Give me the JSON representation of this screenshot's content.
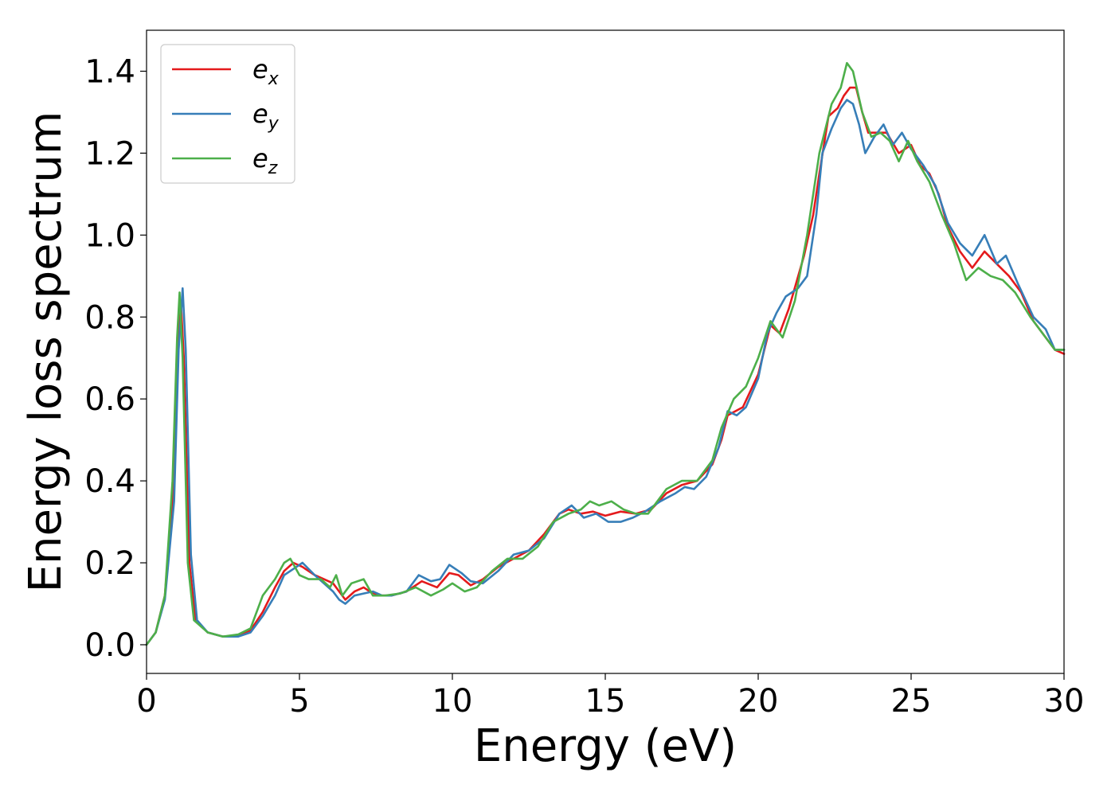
{
  "chart_data": {
    "type": "line",
    "title": "",
    "xlabel": "Energy (eV)",
    "ylabel": "Energy loss spectrum",
    "xlim": [
      0,
      30
    ],
    "ylim": [
      -0.07,
      1.5
    ],
    "xticks": [
      0,
      5,
      10,
      15,
      20,
      25,
      30
    ],
    "xtick_labels": [
      "0",
      "5",
      "10",
      "15",
      "20",
      "25",
      "30"
    ],
    "yticks": [
      0.0,
      0.2,
      0.4,
      0.6,
      0.8,
      1.0,
      1.2,
      1.4
    ],
    "ytick_labels": [
      "0.0",
      "0.2",
      "0.4",
      "0.6",
      "0.8",
      "1.0",
      "1.2",
      "1.4"
    ],
    "grid": false,
    "legend_position": "top-left",
    "series": [
      {
        "name": "e_x",
        "legend_base": "e",
        "legend_sub": "x",
        "color": "#e41a1c",
        "points": [
          [
            0,
            0
          ],
          [
            0.3,
            0.03
          ],
          [
            0.6,
            0.12
          ],
          [
            0.85,
            0.35
          ],
          [
            1.0,
            0.7
          ],
          [
            1.12,
            0.84
          ],
          [
            1.22,
            0.7
          ],
          [
            1.4,
            0.2
          ],
          [
            1.6,
            0.06
          ],
          [
            2.0,
            0.03
          ],
          [
            2.5,
            0.02
          ],
          [
            3.0,
            0.022
          ],
          [
            3.4,
            0.035
          ],
          [
            3.8,
            0.08
          ],
          [
            4.2,
            0.14
          ],
          [
            4.5,
            0.18
          ],
          [
            4.8,
            0.2
          ],
          [
            5.1,
            0.19
          ],
          [
            5.5,
            0.17
          ],
          [
            5.8,
            0.16
          ],
          [
            6.1,
            0.15
          ],
          [
            6.3,
            0.13
          ],
          [
            6.5,
            0.11
          ],
          [
            6.8,
            0.13
          ],
          [
            7.1,
            0.14
          ],
          [
            7.3,
            0.13
          ],
          [
            7.6,
            0.12
          ],
          [
            8.0,
            0.12
          ],
          [
            8.5,
            0.13
          ],
          [
            9.0,
            0.155
          ],
          [
            9.5,
            0.14
          ],
          [
            9.9,
            0.175
          ],
          [
            10.2,
            0.17
          ],
          [
            10.6,
            0.145
          ],
          [
            11.0,
            0.16
          ],
          [
            11.5,
            0.19
          ],
          [
            12.0,
            0.21
          ],
          [
            12.5,
            0.23
          ],
          [
            13.0,
            0.27
          ],
          [
            13.5,
            0.32
          ],
          [
            13.8,
            0.33
          ],
          [
            14.2,
            0.32
          ],
          [
            14.6,
            0.325
          ],
          [
            15.0,
            0.315
          ],
          [
            15.5,
            0.325
          ],
          [
            16.0,
            0.32
          ],
          [
            16.5,
            0.33
          ],
          [
            17.0,
            0.37
          ],
          [
            17.5,
            0.39
          ],
          [
            18.0,
            0.4
          ],
          [
            18.5,
            0.44
          ],
          [
            18.8,
            0.5
          ],
          [
            19.0,
            0.56
          ],
          [
            19.5,
            0.58
          ],
          [
            20.0,
            0.66
          ],
          [
            20.4,
            0.78
          ],
          [
            20.7,
            0.76
          ],
          [
            21.0,
            0.82
          ],
          [
            21.5,
            0.95
          ],
          [
            21.8,
            1.05
          ],
          [
            22.0,
            1.15
          ],
          [
            22.3,
            1.29
          ],
          [
            22.6,
            1.31
          ],
          [
            22.8,
            1.34
          ],
          [
            23.0,
            1.36
          ],
          [
            23.2,
            1.36
          ],
          [
            23.4,
            1.3
          ],
          [
            23.6,
            1.25
          ],
          [
            23.9,
            1.25
          ],
          [
            24.2,
            1.25
          ],
          [
            24.6,
            1.2
          ],
          [
            25.0,
            1.22
          ],
          [
            25.3,
            1.17
          ],
          [
            25.6,
            1.15
          ],
          [
            25.9,
            1.1
          ],
          [
            26.2,
            1.02
          ],
          [
            26.6,
            0.96
          ],
          [
            27.0,
            0.92
          ],
          [
            27.4,
            0.96
          ],
          [
            27.8,
            0.93
          ],
          [
            28.2,
            0.9
          ],
          [
            28.6,
            0.86
          ],
          [
            29.0,
            0.79
          ],
          [
            29.4,
            0.75
          ],
          [
            29.7,
            0.72
          ],
          [
            30.0,
            0.71
          ]
        ]
      },
      {
        "name": "e_y",
        "legend_base": "e",
        "legend_sub": "y",
        "color": "#377eb8",
        "points": [
          [
            0,
            0
          ],
          [
            0.3,
            0.03
          ],
          [
            0.6,
            0.11
          ],
          [
            0.9,
            0.35
          ],
          [
            1.05,
            0.72
          ],
          [
            1.18,
            0.87
          ],
          [
            1.28,
            0.72
          ],
          [
            1.45,
            0.22
          ],
          [
            1.65,
            0.06
          ],
          [
            2.0,
            0.03
          ],
          [
            2.5,
            0.02
          ],
          [
            3.0,
            0.02
          ],
          [
            3.4,
            0.03
          ],
          [
            3.8,
            0.07
          ],
          [
            4.2,
            0.12
          ],
          [
            4.5,
            0.17
          ],
          [
            4.9,
            0.19
          ],
          [
            5.1,
            0.2
          ],
          [
            5.5,
            0.17
          ],
          [
            5.8,
            0.15
          ],
          [
            6.1,
            0.13
          ],
          [
            6.3,
            0.11
          ],
          [
            6.5,
            0.1
          ],
          [
            6.8,
            0.12
          ],
          [
            7.1,
            0.125
          ],
          [
            7.4,
            0.13
          ],
          [
            7.7,
            0.12
          ],
          [
            8.0,
            0.12
          ],
          [
            8.5,
            0.13
          ],
          [
            8.9,
            0.17
          ],
          [
            9.3,
            0.155
          ],
          [
            9.6,
            0.16
          ],
          [
            9.9,
            0.195
          ],
          [
            10.3,
            0.175
          ],
          [
            10.6,
            0.155
          ],
          [
            11.0,
            0.15
          ],
          [
            11.5,
            0.18
          ],
          [
            12.0,
            0.22
          ],
          [
            12.5,
            0.23
          ],
          [
            13.0,
            0.26
          ],
          [
            13.5,
            0.32
          ],
          [
            13.9,
            0.34
          ],
          [
            14.3,
            0.31
          ],
          [
            14.7,
            0.32
          ],
          [
            15.1,
            0.3
          ],
          [
            15.5,
            0.3
          ],
          [
            15.9,
            0.31
          ],
          [
            16.3,
            0.325
          ],
          [
            16.8,
            0.35
          ],
          [
            17.3,
            0.37
          ],
          [
            17.6,
            0.385
          ],
          [
            17.9,
            0.38
          ],
          [
            18.3,
            0.41
          ],
          [
            18.7,
            0.48
          ],
          [
            19.0,
            0.57
          ],
          [
            19.3,
            0.56
          ],
          [
            19.6,
            0.58
          ],
          [
            20.0,
            0.65
          ],
          [
            20.3,
            0.76
          ],
          [
            20.6,
            0.81
          ],
          [
            20.9,
            0.85
          ],
          [
            21.3,
            0.87
          ],
          [
            21.6,
            0.9
          ],
          [
            21.9,
            1.05
          ],
          [
            22.1,
            1.2
          ],
          [
            22.4,
            1.26
          ],
          [
            22.7,
            1.31
          ],
          [
            22.9,
            1.33
          ],
          [
            23.1,
            1.32
          ],
          [
            23.3,
            1.27
          ],
          [
            23.5,
            1.2
          ],
          [
            23.8,
            1.24
          ],
          [
            24.1,
            1.27
          ],
          [
            24.4,
            1.22
          ],
          [
            24.7,
            1.25
          ],
          [
            25.0,
            1.21
          ],
          [
            25.4,
            1.17
          ],
          [
            25.8,
            1.12
          ],
          [
            26.2,
            1.03
          ],
          [
            26.6,
            0.98
          ],
          [
            27.0,
            0.95
          ],
          [
            27.4,
            1.0
          ],
          [
            27.8,
            0.93
          ],
          [
            28.1,
            0.95
          ],
          [
            28.5,
            0.88
          ],
          [
            29.0,
            0.8
          ],
          [
            29.4,
            0.77
          ],
          [
            29.7,
            0.72
          ],
          [
            30.0,
            0.72
          ]
        ]
      },
      {
        "name": "e_z",
        "legend_base": "e",
        "legend_sub": "z",
        "color": "#4daf4a",
        "points": [
          [
            0,
            0
          ],
          [
            0.3,
            0.03
          ],
          [
            0.6,
            0.12
          ],
          [
            0.85,
            0.4
          ],
          [
            1.0,
            0.75
          ],
          [
            1.08,
            0.86
          ],
          [
            1.18,
            0.7
          ],
          [
            1.35,
            0.2
          ],
          [
            1.55,
            0.06
          ],
          [
            2.0,
            0.03
          ],
          [
            2.5,
            0.02
          ],
          [
            3.0,
            0.025
          ],
          [
            3.4,
            0.04
          ],
          [
            3.8,
            0.12
          ],
          [
            4.2,
            0.16
          ],
          [
            4.5,
            0.2
          ],
          [
            4.7,
            0.21
          ],
          [
            5.0,
            0.17
          ],
          [
            5.3,
            0.16
          ],
          [
            5.7,
            0.16
          ],
          [
            6.0,
            0.14
          ],
          [
            6.2,
            0.17
          ],
          [
            6.4,
            0.12
          ],
          [
            6.7,
            0.15
          ],
          [
            7.1,
            0.16
          ],
          [
            7.4,
            0.12
          ],
          [
            7.8,
            0.12
          ],
          [
            8.3,
            0.125
          ],
          [
            8.8,
            0.14
          ],
          [
            9.3,
            0.12
          ],
          [
            9.7,
            0.135
          ],
          [
            10.0,
            0.15
          ],
          [
            10.4,
            0.13
          ],
          [
            10.8,
            0.14
          ],
          [
            11.3,
            0.18
          ],
          [
            11.8,
            0.21
          ],
          [
            12.3,
            0.21
          ],
          [
            12.8,
            0.24
          ],
          [
            13.3,
            0.3
          ],
          [
            13.8,
            0.32
          ],
          [
            14.2,
            0.33
          ],
          [
            14.5,
            0.35
          ],
          [
            14.8,
            0.34
          ],
          [
            15.2,
            0.35
          ],
          [
            15.6,
            0.33
          ],
          [
            16.0,
            0.32
          ],
          [
            16.4,
            0.32
          ],
          [
            17.0,
            0.38
          ],
          [
            17.5,
            0.4
          ],
          [
            18.0,
            0.4
          ],
          [
            18.5,
            0.45
          ],
          [
            18.8,
            0.53
          ],
          [
            19.2,
            0.6
          ],
          [
            19.6,
            0.63
          ],
          [
            20.0,
            0.7
          ],
          [
            20.4,
            0.79
          ],
          [
            20.8,
            0.75
          ],
          [
            21.2,
            0.84
          ],
          [
            21.6,
            1.0
          ],
          [
            22.0,
            1.2
          ],
          [
            22.4,
            1.32
          ],
          [
            22.7,
            1.36
          ],
          [
            22.9,
            1.42
          ],
          [
            23.1,
            1.4
          ],
          [
            23.4,
            1.3
          ],
          [
            23.7,
            1.24
          ],
          [
            24.0,
            1.25
          ],
          [
            24.3,
            1.23
          ],
          [
            24.6,
            1.18
          ],
          [
            24.9,
            1.23
          ],
          [
            25.2,
            1.18
          ],
          [
            25.6,
            1.13
          ],
          [
            26.0,
            1.05
          ],
          [
            26.4,
            0.98
          ],
          [
            26.8,
            0.89
          ],
          [
            27.2,
            0.92
          ],
          [
            27.6,
            0.9
          ],
          [
            28.0,
            0.89
          ],
          [
            28.4,
            0.86
          ],
          [
            28.9,
            0.8
          ],
          [
            29.3,
            0.76
          ],
          [
            29.7,
            0.72
          ],
          [
            30.0,
            0.72
          ]
        ]
      }
    ]
  }
}
